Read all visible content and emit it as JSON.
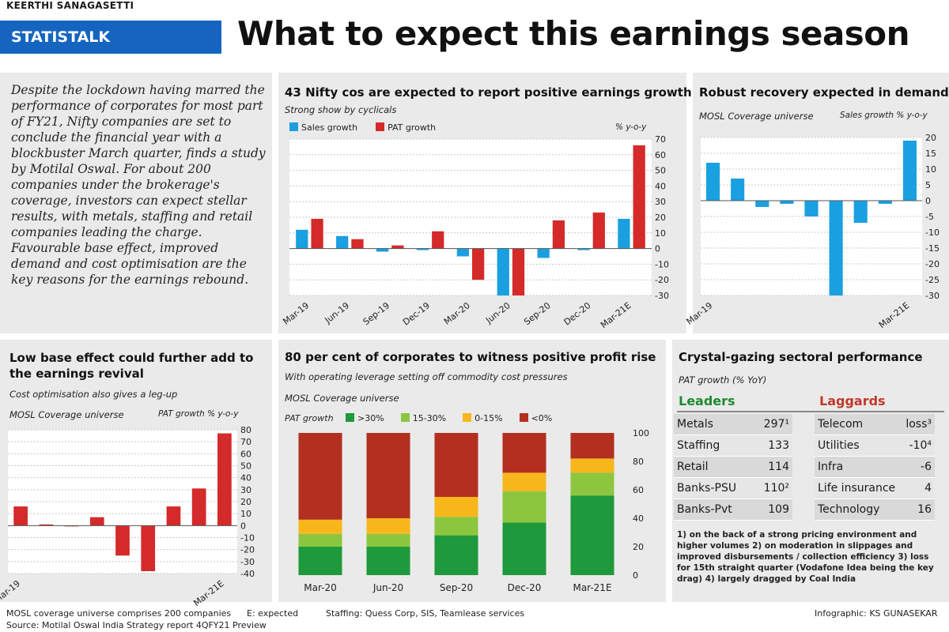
{
  "byline": "KEERTHI SANAGASETTI",
  "tag": "STATISTALK",
  "headline": "What to expect this earnings season",
  "intro": "Despite the lockdown having marred the performance of corporates for most part of FY21, Nifty companies are set to conclude the financial year with a blockbuster March quarter, finds a study by Motilal Oswal. For about 200 companies under the brokerage's coverage, investors can expect stellar results, with metals, staffing and retail companies leading the charge. Favourable base effect, improved demand and cost optimisation are the key reasons for the earnings rebound.",
  "chart_data": [
    {
      "id": "nifty",
      "type": "bar",
      "title": "43 Nifty cos are expected to report positive earnings growth",
      "subtitle": "Strong show by cyclicals",
      "unit": "% y-o-y",
      "categories": [
        "Mar-19",
        "Jun-19",
        "Sep-19",
        "Dec-19",
        "Mar-20",
        "Jun-20",
        "Sep-20",
        "Dec-20",
        "Mar-21E"
      ],
      "series": [
        {
          "name": "Sales growth",
          "color": "#1aa0e0",
          "values": [
            12,
            8,
            -2,
            -1,
            -5,
            -30,
            -6,
            -1,
            19
          ]
        },
        {
          "name": "PAT growth",
          "color": "#d42a2a",
          "values": [
            19,
            6,
            2,
            11,
            -20,
            -30,
            18,
            23,
            66
          ]
        }
      ],
      "ylim": [
        -30,
        70
      ],
      "yticks": [
        70,
        60,
        50,
        40,
        30,
        20,
        10,
        0,
        -10,
        -20,
        -30
      ]
    },
    {
      "id": "demand",
      "type": "bar",
      "title": "Robust recovery expected in demand",
      "subtitle": "MOSL Coverage universe",
      "unit": "Sales growth % y-o-y",
      "categories": [
        "Mar-19",
        "",
        "",
        "",
        "",
        "",
        "",
        "",
        "Mar-21E"
      ],
      "series": [
        {
          "name": "Sales growth",
          "color": "#1aa0e0",
          "values": [
            12,
            7,
            -2,
            -1,
            -5,
            -30,
            -7,
            -1,
            19
          ]
        }
      ],
      "ylim": [
        -30,
        20
      ],
      "yticks": [
        20,
        15,
        10,
        5,
        0,
        -5,
        -10,
        -15,
        -20,
        -25,
        -30
      ]
    },
    {
      "id": "lowbase",
      "type": "bar",
      "title": "Low base effect could further add to the earnings revival",
      "subtitle": "Cost optimisation also gives a leg-up",
      "universe": "MOSL Coverage universe",
      "unit": "PAT growth % y-o-y",
      "categories": [
        "Mar-19",
        "",
        "",
        "",
        "",
        "",
        "",
        "",
        "Mar-21E"
      ],
      "series": [
        {
          "name": "PAT growth",
          "color": "#d42a2a",
          "values": [
            16,
            1,
            0,
            7,
            -25,
            -38,
            16,
            31,
            77
          ]
        }
      ],
      "ylim": [
        -40,
        80
      ],
      "yticks": [
        80,
        70,
        60,
        50,
        40,
        30,
        20,
        10,
        0,
        -10,
        -20,
        -30,
        -40
      ]
    },
    {
      "id": "profitrise",
      "type": "bar",
      "stacked": true,
      "title": "80 per cent of corporates to witness positive profit rise",
      "subtitle": "With operating leverage setting off commodity cost pressures",
      "universe": "MOSL Coverage universe",
      "legend_label": "PAT growth",
      "categories": [
        "Mar-20",
        "Jun-20",
        "Sep-20",
        "Dec-20",
        "Mar-21E"
      ],
      "series": [
        {
          "name": ">30%",
          "color": "#1e9a3c",
          "values": [
            20,
            20,
            28,
            37,
            56
          ]
        },
        {
          "name": "15-30%",
          "color": "#8cc63e",
          "values": [
            9,
            9,
            13,
            22,
            16
          ]
        },
        {
          "name": "0-15%",
          "color": "#f7b71b",
          "values": [
            10,
            11,
            14,
            13,
            10
          ]
        },
        {
          "name": "<0%",
          "color": "#b33020",
          "values": [
            61,
            60,
            45,
            28,
            18
          ]
        }
      ],
      "ylim": [
        0,
        100
      ],
      "yticks": [
        100,
        80,
        60,
        40,
        20,
        0
      ]
    }
  ],
  "sector": {
    "title": "Crystal-gazing sectoral performance",
    "subtitle": "PAT growth (% YoY)",
    "leaders_label": "Leaders",
    "laggards_label": "Laggards",
    "leaders_color": "#1e8a2e",
    "laggards_color": "#c0392b",
    "leaders": [
      {
        "name": "Metals",
        "value": "297¹"
      },
      {
        "name": "Staffing",
        "value": "133"
      },
      {
        "name": "Retail",
        "value": "114"
      },
      {
        "name": "Banks-PSU",
        "value": "110²"
      },
      {
        "name": "Banks-Pvt",
        "value": "109"
      }
    ],
    "laggards": [
      {
        "name": "Telecom",
        "value": "loss³"
      },
      {
        "name": "Utilities",
        "value": "-10⁴"
      },
      {
        "name": "Infra",
        "value": "-6"
      },
      {
        "name": "Life insurance",
        "value": "4"
      },
      {
        "name": "Technology",
        "value": "16"
      }
    ],
    "notes": "1) on the back of a strong pricing environment and higher volumes 2) on moderation in slippages and improved disbursements / collection efficiency 3) loss for 15th straight quarter (Vodafone Idea being the key drag) 4) largely dragged by Coal India"
  },
  "footer": {
    "line1": "MOSL coverage universe comprises 200 companies",
    "expected": "E: expected",
    "staffing": "Staffing: Quess Corp, SIS, Teamlease services",
    "source": "Source: Motilal Oswal India Strategy report 4QFY21 Preview",
    "credit": "Infographic: KS GUNASEKAR"
  }
}
